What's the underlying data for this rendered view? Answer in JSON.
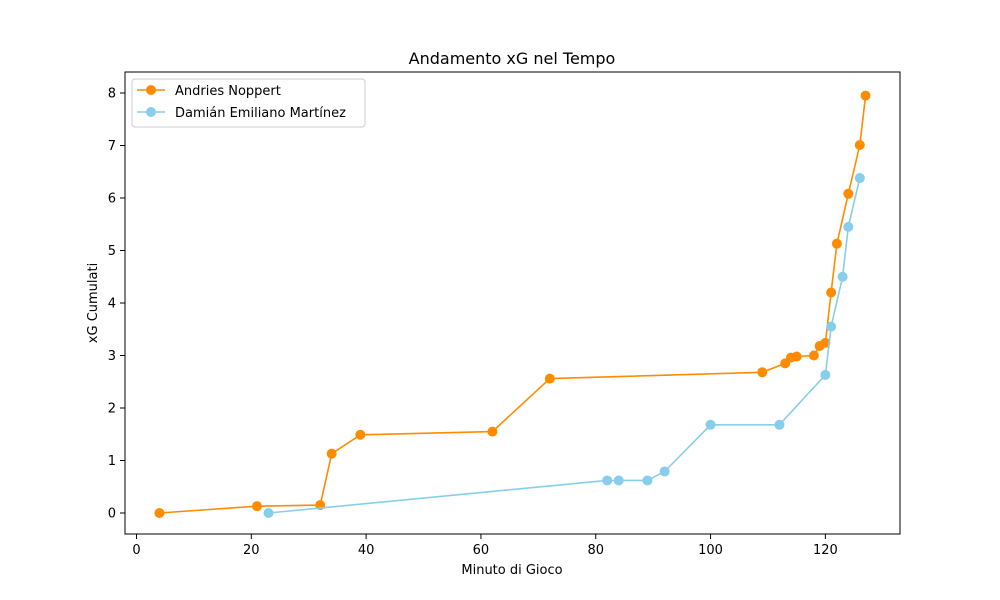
{
  "chart_data": {
    "type": "line",
    "title": "Andamento xG nel Tempo",
    "xlabel": "Minuto di Gioco",
    "ylabel": "xG Cumulati",
    "xlim": [
      -2,
      133
    ],
    "ylim": [
      -0.4,
      8.4
    ],
    "xticks": [
      0,
      20,
      40,
      60,
      80,
      100,
      120
    ],
    "yticks": [
      0,
      1,
      2,
      3,
      4,
      5,
      6,
      7,
      8
    ],
    "grid": false,
    "legend_position": "upper-left",
    "series": [
      {
        "name": "Andries Noppert",
        "color": "#ff8c00",
        "x": [
          4,
          21,
          32,
          34,
          39,
          62,
          72,
          109,
          113,
          114,
          115,
          118,
          119,
          120,
          121,
          122,
          124,
          126,
          127
        ],
        "y": [
          0.0,
          0.13,
          0.15,
          1.13,
          1.49,
          1.55,
          2.56,
          2.68,
          2.85,
          2.96,
          2.98,
          3.0,
          3.18,
          3.24,
          4.2,
          5.13,
          6.08,
          7.01,
          7.95
        ]
      },
      {
        "name": "Damián Emiliano Martínez",
        "color": "#87ceeb",
        "x": [
          23,
          82,
          84,
          89,
          92,
          100,
          112,
          120,
          121,
          123,
          124,
          126
        ],
        "y": [
          0.0,
          0.62,
          0.62,
          0.62,
          0.79,
          1.68,
          1.68,
          2.63,
          3.55,
          4.5,
          5.45,
          6.38
        ]
      }
    ]
  }
}
